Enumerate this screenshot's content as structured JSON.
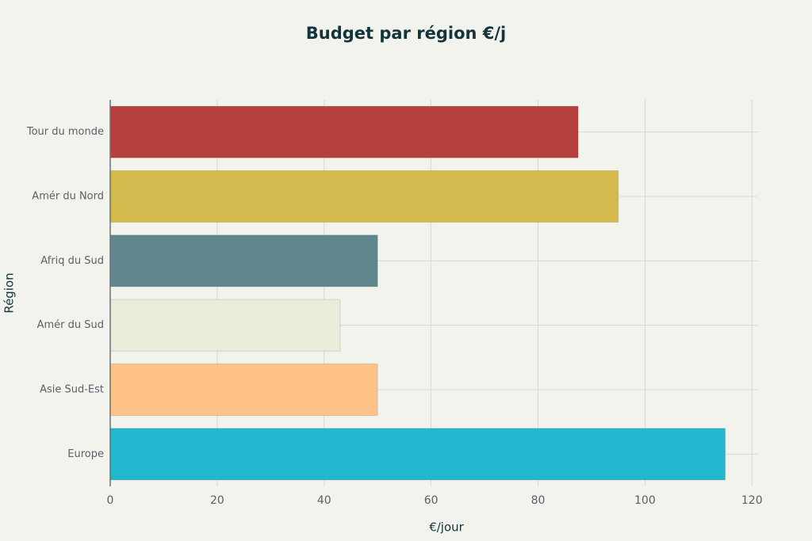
{
  "chart_data": {
    "type": "barh",
    "title": "Budget par région €/j",
    "x_label": "€/jour",
    "y_label": "Région",
    "categories": [
      "Tour du monde",
      "Amér du Nord",
      "Afriq du Sud",
      "Amér du Sud",
      "Asie Sud-Est",
      "Europe"
    ],
    "values": [
      87.5,
      95,
      50,
      43,
      50,
      115
    ],
    "colors": [
      "#b5403c",
      "#d4b94e",
      "#5f868c",
      "#ebebd9",
      "#fec186",
      "#21b7cf"
    ],
    "xlim": [
      0,
      121
    ],
    "xticks": [
      0,
      20,
      40,
      60,
      80,
      100,
      120
    ],
    "grid": true
  }
}
